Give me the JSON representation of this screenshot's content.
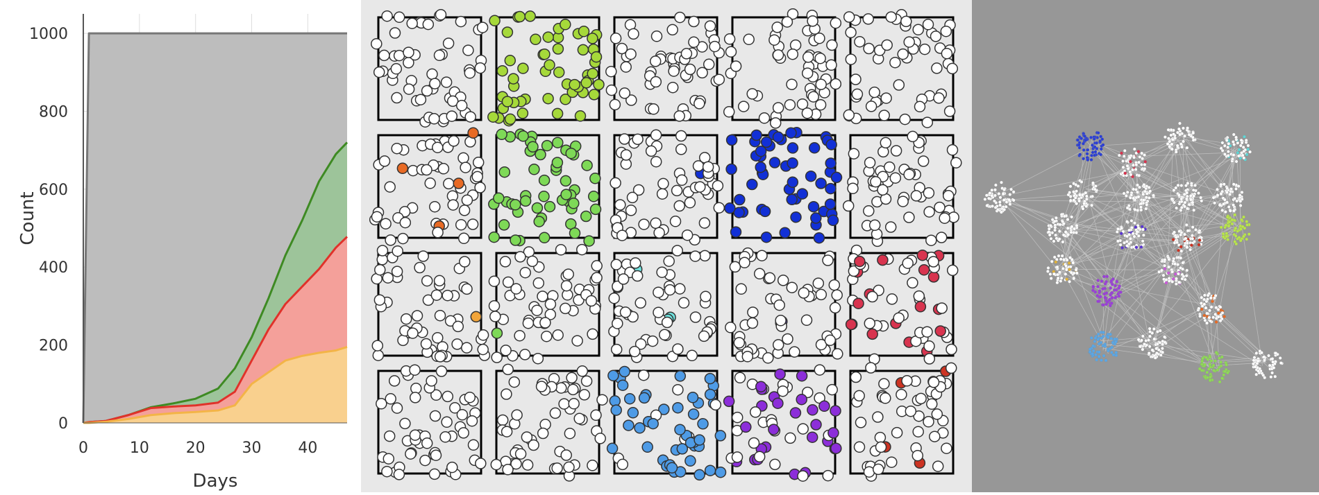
{
  "chart_data": {
    "type": "area",
    "xlabel": "Days",
    "ylabel": "Count",
    "xlim": [
      0,
      47
    ],
    "ylim": [
      0,
      1050
    ],
    "x_ticks": [
      0,
      10,
      20,
      30,
      40
    ],
    "y_ticks": [
      0,
      200,
      400,
      600,
      800,
      1000
    ],
    "grid": true,
    "x": [
      0,
      1,
      4,
      8,
      12,
      16,
      20,
      24,
      27,
      30,
      33,
      36,
      39,
      42,
      45,
      47
    ],
    "series": [
      {
        "color": "#bdbdbd",
        "line_color": "#777777",
        "values": [
          0,
          1000,
          1000,
          1000,
          1000,
          1000,
          1000,
          1000,
          1000,
          1000,
          1000,
          1000,
          1000,
          1000,
          1000,
          1000
        ]
      },
      {
        "color": "#9dc49a",
        "line_color": "#3e8a23",
        "values": [
          0,
          2,
          5,
          20,
          40,
          50,
          62,
          88,
          140,
          220,
          320,
          430,
          520,
          620,
          690,
          720
        ]
      },
      {
        "color": "#f4a09a",
        "line_color": "#e0322a",
        "values": [
          0,
          2,
          5,
          20,
          38,
          42,
          45,
          52,
          80,
          160,
          240,
          305,
          350,
          395,
          450,
          478
        ]
      },
      {
        "color": "#f9d08e",
        "line_color": "#f3b447",
        "values": [
          0,
          0,
          3,
          10,
          20,
          25,
          28,
          32,
          45,
          100,
          130,
          160,
          172,
          180,
          186,
          195
        ]
      }
    ]
  },
  "grid_diagram": {
    "rows": 4,
    "cols": 5,
    "colors": {
      "empty": "#ffffff",
      "lime": "#a6d93a",
      "green": "#7ed957",
      "blue": "#1230d6",
      "red": "#d8344f",
      "skyblue": "#4e9be6",
      "purple": "#8c2ed9",
      "orange": "#e86a24",
      "gold": "#f2a53a",
      "cyan": "#6fe3df",
      "violet": "#5a35d4",
      "crimson": "#cc3322"
    },
    "cells": [
      {
        "fill": "empty"
      },
      {
        "fill": "lime"
      },
      {
        "fill": "empty"
      },
      {
        "fill": "empty"
      },
      {
        "fill": "empty"
      },
      {
        "fill": "empty",
        "accent": "orange",
        "accent_count": 4
      },
      {
        "fill": "green",
        "accent": "blue",
        "accent_count": 1
      },
      {
        "fill": "empty",
        "accent": "blue",
        "accent_count": 1
      },
      {
        "fill": "blue"
      },
      {
        "fill": "empty"
      },
      {
        "fill": "empty",
        "accent": "gold",
        "accent_count": 1
      },
      {
        "fill": "empty",
        "accent": "green",
        "accent_count": 1
      },
      {
        "fill": "empty",
        "accent": "cyan",
        "accent_count": 3
      },
      {
        "fill": "empty",
        "accent": "violet",
        "accent_count": 2
      },
      {
        "fill": "red",
        "ratio": 0.3
      },
      {
        "fill": "empty"
      },
      {
        "fill": "empty"
      },
      {
        "fill": "skyblue",
        "ratio": 0.9
      },
      {
        "fill": "purple",
        "ratio": 0.45
      },
      {
        "fill": "empty",
        "accent": "crimson",
        "accent_count": 4
      }
    ]
  },
  "network_diagram": {
    "background": "#979797",
    "node_color": "#f2f2f2",
    "edge_color": "#c4c4c4",
    "clusters": [
      {
        "id": "c0",
        "color": "#ffffff"
      },
      {
        "id": "c1",
        "color": "#2a3ed6"
      },
      {
        "id": "c2",
        "color": "#ffffff",
        "accent": "#d8344f"
      },
      {
        "id": "c3",
        "color": "#ffffff"
      },
      {
        "id": "c4",
        "color": "#ffffff",
        "accent": "#5fd6d6"
      },
      {
        "id": "c5",
        "color": "#ffffff"
      },
      {
        "id": "c6",
        "color": "#ffffff"
      },
      {
        "id": "c7",
        "color": "#ffffff"
      },
      {
        "id": "c8",
        "color": "#ffffff"
      },
      {
        "id": "c9",
        "color": "#ffffff"
      },
      {
        "id": "c10",
        "color": "#ffffff",
        "accent": "#5a35d4"
      },
      {
        "id": "c11",
        "color": "#ffffff",
        "accent": "#cc3322"
      },
      {
        "id": "c12",
        "color": "#b9e64a"
      },
      {
        "id": "c13",
        "color": "#ffffff",
        "accent": "#e0b23a"
      },
      {
        "id": "c14",
        "color": "#ffffff",
        "accent": "#c95ad9"
      },
      {
        "id": "c15",
        "color": "#9a3ed9"
      },
      {
        "id": "c16",
        "color": "#ffffff",
        "accent": "#e86a24"
      },
      {
        "id": "c17",
        "color": "#ffffff"
      },
      {
        "id": "c18",
        "color": "#5aa7e6"
      },
      {
        "id": "c19",
        "color": "#8fd957"
      },
      {
        "id": "c20",
        "color": "#ffffff"
      }
    ]
  }
}
